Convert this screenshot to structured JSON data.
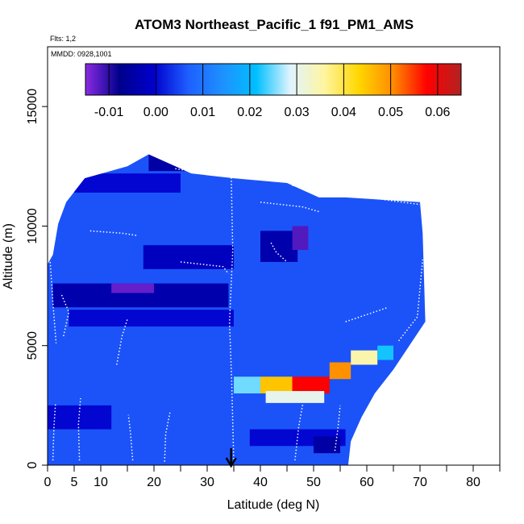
{
  "chart_data": {
    "type": "heatmap",
    "title": "ATOM3 Northeast_Pacific_1 f91_PM1_AMS",
    "flights_label": "Flts: 1,2",
    "mmdd_label": "MMDD: 0928,1001",
    "xlabel": "Latitude (deg N)",
    "ylabel": "Altitude (m)",
    "xlim": [
      0,
      85
    ],
    "ylim": [
      0,
      17500
    ],
    "x_major_ticks": [
      0,
      5,
      10,
      20,
      30,
      40,
      50,
      60,
      70,
      80
    ],
    "x_minor_ticks": [
      15,
      25,
      35,
      45,
      55,
      65,
      75,
      85
    ],
    "y_ticks": [
      0,
      5000,
      10000,
      15000
    ],
    "colorbar": {
      "min": -0.015,
      "max": 0.065,
      "ticks": [
        -0.01,
        0.0,
        0.01,
        0.02,
        0.03,
        0.04,
        0.05,
        0.06
      ],
      "tick_labels": [
        "-0.01",
        "0.00",
        "0.01",
        "0.02",
        "0.03",
        "0.04",
        "0.05",
        "0.06"
      ],
      "stops": [
        "#8a2be2",
        "#00008b",
        "#0000cd",
        "#1e5eff",
        "#1e90ff",
        "#00bfff",
        "#e0f4ff",
        "#fff5a0",
        "#ffd700",
        "#ff8c00",
        "#ff0000",
        "#b22222"
      ]
    },
    "background_value": 0.006,
    "domain_profile": [
      {
        "lat": 0.0,
        "alt_top": 8400
      },
      {
        "lat": 1.0,
        "alt_top": 8800
      },
      {
        "lat": 2.0,
        "alt_top": 10100
      },
      {
        "lat": 3.5,
        "alt_top": 11000
      },
      {
        "lat": 7.0,
        "alt_top": 12000
      },
      {
        "lat": 15.0,
        "alt_top": 12500
      },
      {
        "lat": 19.0,
        "alt_top": 13000
      },
      {
        "lat": 27.0,
        "alt_top": 12200
      },
      {
        "lat": 35.0,
        "alt_top": 12000
      },
      {
        "lat": 45.0,
        "alt_top": 11800
      },
      {
        "lat": 51.0,
        "alt_top": 11200
      },
      {
        "lat": 56.0,
        "alt_top": 11200
      },
      {
        "lat": 70.0,
        "alt_top": 11000
      },
      {
        "lat": 70.5,
        "alt_top": 9700
      },
      {
        "lat": 71.0,
        "alt_top": 6000
      },
      {
        "lat": 68.0,
        "alt_top": 5000
      },
      {
        "lat": 65.0,
        "alt_top": 4000
      },
      {
        "lat": 61.5,
        "alt_top": 3000
      },
      {
        "lat": 59.0,
        "alt_top": 2000
      },
      {
        "lat": 57.0,
        "alt_top": 1000
      },
      {
        "lat": 56.5,
        "alt_top": 0
      }
    ],
    "features": [
      {
        "lat_min": 1,
        "lat_max": 34,
        "alt_min": 6600,
        "alt_max": 7600,
        "value": -0.004
      },
      {
        "lat_min": 12,
        "lat_max": 20,
        "alt_min": 7200,
        "alt_max": 7600,
        "value": -0.013
      },
      {
        "lat_min": 4,
        "lat_max": 35,
        "alt_min": 5800,
        "alt_max": 6500,
        "value": 0.0
      },
      {
        "lat_min": 18,
        "lat_max": 35,
        "alt_min": 8200,
        "alt_max": 9200,
        "value": -0.002
      },
      {
        "lat_min": 40,
        "lat_max": 47,
        "alt_min": 8500,
        "alt_max": 9800,
        "value": -0.004
      },
      {
        "lat_min": 46,
        "lat_max": 49,
        "alt_min": 9000,
        "alt_max": 10000,
        "value": -0.012
      },
      {
        "lat_min": 5,
        "lat_max": 25,
        "alt_min": 11400,
        "alt_max": 12200,
        "value": 0.0
      },
      {
        "lat_min": 19,
        "lat_max": 26,
        "alt_min": 12300,
        "alt_max": 13000,
        "value": -0.005
      },
      {
        "lat_min": 35,
        "lat_max": 40,
        "alt_min": 3000,
        "alt_max": 3700,
        "value": 0.025
      },
      {
        "lat_min": 40,
        "lat_max": 46,
        "alt_min": 3000,
        "alt_max": 3700,
        "value": 0.045
      },
      {
        "lat_min": 46,
        "lat_max": 53,
        "alt_min": 3000,
        "alt_max": 3700,
        "value": 0.058
      },
      {
        "lat_min": 41,
        "lat_max": 52,
        "alt_min": 2600,
        "alt_max": 3100,
        "value": 0.03
      },
      {
        "lat_min": 53,
        "lat_max": 57,
        "alt_min": 3600,
        "alt_max": 4300,
        "value": 0.05
      },
      {
        "lat_min": 57,
        "lat_max": 62,
        "alt_min": 4200,
        "alt_max": 4800,
        "value": 0.035
      },
      {
        "lat_min": 62,
        "lat_max": 65,
        "alt_min": 4400,
        "alt_max": 5000,
        "value": 0.022
      },
      {
        "lat_min": 0,
        "lat_max": 12,
        "alt_min": 1500,
        "alt_max": 2500,
        "value": 0.0
      },
      {
        "lat_min": 38,
        "lat_max": 56,
        "alt_min": 800,
        "alt_max": 1500,
        "value": 0.0
      },
      {
        "lat_min": 50,
        "lat_max": 55,
        "alt_min": 500,
        "alt_max": 1200,
        "value": -0.005
      }
    ],
    "flight_tracks": [
      [
        [
          34.5,
          12300
        ],
        [
          34.8,
          9000
        ],
        [
          34.2,
          6000
        ],
        [
          34.6,
          3500
        ],
        [
          35.0,
          100
        ]
      ],
      [
        [
          54.0,
          600
        ],
        [
          54.6,
          1600
        ],
        [
          55.0,
          2500
        ]
      ],
      [
        [
          24.0,
          12400
        ],
        [
          30.0,
          12200
        ],
        [
          32.0,
          12100
        ]
      ],
      [
        [
          46.0,
          11700
        ],
        [
          52.0,
          11400
        ],
        [
          60.0,
          11200
        ],
        [
          70.0,
          10900
        ]
      ],
      [
        [
          1.0,
          200
        ],
        [
          1.2,
          1600
        ],
        [
          1.5,
          2600
        ]
      ],
      [
        [
          6.0,
          200
        ],
        [
          5.8,
          1700
        ],
        [
          6.2,
          2800
        ]
      ],
      [
        [
          16.0,
          200
        ],
        [
          15.6,
          1300
        ],
        [
          15.2,
          2100
        ]
      ],
      [
        [
          22.0,
          150
        ],
        [
          22.2,
          1300
        ],
        [
          23.0,
          2200
        ]
      ],
      [
        [
          46.5,
          200
        ],
        [
          47.2,
          1600
        ],
        [
          48.0,
          2600
        ]
      ],
      [
        [
          3.0,
          5400
        ],
        [
          4.0,
          6400
        ],
        [
          2.5,
          7200
        ]
      ],
      [
        [
          66.0,
          5200
        ],
        [
          69.5,
          6200
        ],
        [
          70.5,
          8600
        ]
      ],
      [
        [
          25.0,
          8500
        ],
        [
          33.0,
          8300
        ],
        [
          34.0,
          8000
        ]
      ],
      [
        [
          8.0,
          9800
        ],
        [
          14.0,
          9700
        ],
        [
          17.0,
          9600
        ]
      ],
      [
        [
          42.0,
          9300
        ],
        [
          43.0,
          8900
        ],
        [
          45.0,
          8500
        ]
      ],
      [
        [
          40.0,
          11000
        ],
        [
          48.0,
          10800
        ],
        [
          51.0,
          10600
        ]
      ],
      [
        [
          0.5,
          8500
        ],
        [
          1.0,
          6800
        ],
        [
          1.6,
          5100
        ]
      ],
      [
        [
          13.0,
          4200
        ],
        [
          14.0,
          5400
        ],
        [
          15.0,
          6100
        ]
      ],
      [
        [
          56.0,
          6000
        ],
        [
          60.0,
          6300
        ],
        [
          64.0,
          6600
        ]
      ]
    ],
    "marker": {
      "lat": 34.5,
      "label": "arrow"
    }
  }
}
